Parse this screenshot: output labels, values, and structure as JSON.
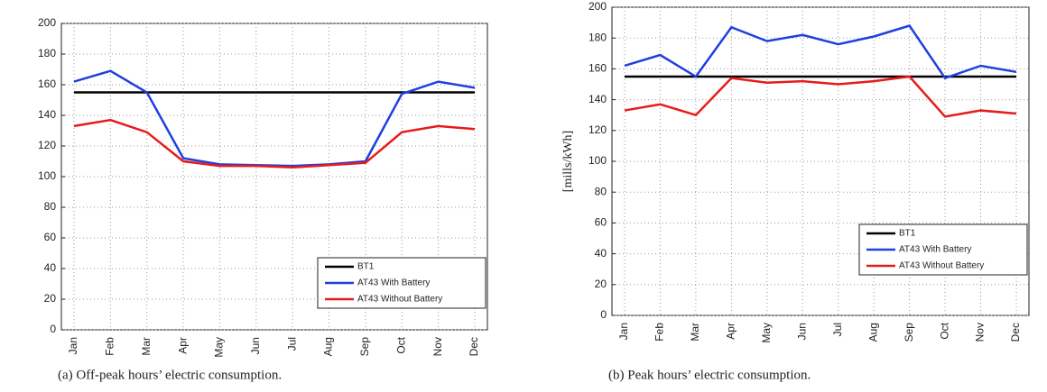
{
  "chart_data": [
    {
      "type": "line",
      "caption": "(a) Off-peak hours’ electric consumption.",
      "categories": [
        "Jan",
        "Feb",
        "Mar",
        "Apr",
        "May",
        "Jun",
        "Jul",
        "Aug",
        "Sep",
        "Oct",
        "Nov",
        "Dec"
      ],
      "series": [
        {
          "name": "BT1",
          "color": "#000000",
          "values": [
            155,
            155,
            155,
            155,
            155,
            155,
            155,
            155,
            155,
            155,
            155,
            155
          ]
        },
        {
          "name": "AT43 With Battery",
          "color": "#1f3fe0",
          "values": [
            162,
            169,
            155,
            112,
            108,
            107.5,
            107,
            108,
            110,
            154,
            162,
            158
          ]
        },
        {
          "name": "AT43 Without Battery",
          "color": "#e81a1a",
          "values": [
            133,
            137,
            129,
            110,
            107,
            107,
            106,
            107.5,
            109,
            129,
            133,
            131
          ]
        }
      ],
      "ylim": [
        0,
        200
      ],
      "yticks": [
        0,
        20,
        40,
        60,
        80,
        100,
        120,
        140,
        160,
        180,
        200
      ],
      "grid": true,
      "legend": "lower right"
    },
    {
      "type": "line",
      "caption": "(b) Peak hours’ electric consumption.",
      "ylabel": "[mills/kWh]",
      "categories": [
        "Jan",
        "Feb",
        "Mar",
        "Apr",
        "May",
        "Jun",
        "Jul",
        "Aug",
        "Sep",
        "Oct",
        "Nov",
        "Dec"
      ],
      "series": [
        {
          "name": "BT1",
          "color": "#000000",
          "values": [
            155,
            155,
            155,
            155,
            155,
            155,
            155,
            155,
            155,
            155,
            155,
            155
          ]
        },
        {
          "name": "AT43 With Battery",
          "color": "#1f3fe0",
          "values": [
            162,
            169,
            155,
            187,
            178,
            182,
            176,
            181,
            188,
            154,
            162,
            158
          ]
        },
        {
          "name": "AT43 Without Battery",
          "color": "#e81a1a",
          "values": [
            133,
            137,
            130,
            154,
            151,
            152,
            150,
            152,
            155,
            129,
            133,
            131
          ]
        }
      ],
      "ylim": [
        0,
        200
      ],
      "yticks": [
        0,
        20,
        40,
        60,
        80,
        100,
        120,
        140,
        160,
        180,
        200
      ],
      "grid": true,
      "legend": "lower right"
    }
  ]
}
